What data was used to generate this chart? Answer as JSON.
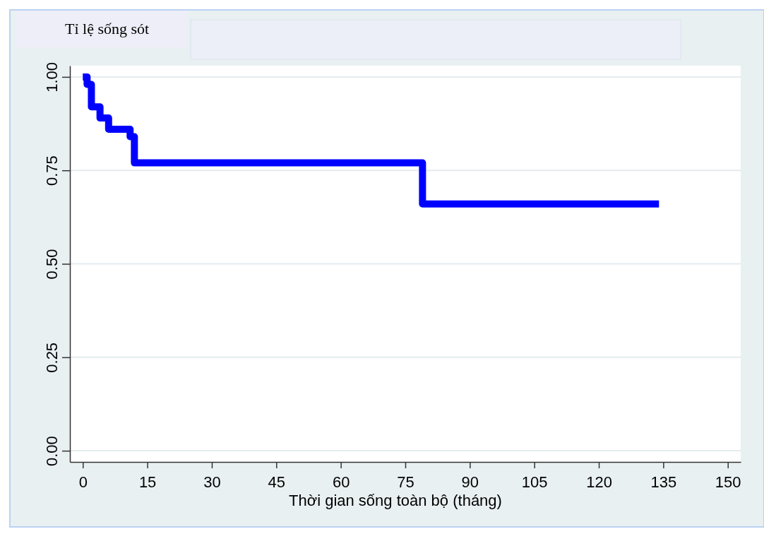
{
  "chart_data": {
    "type": "step",
    "ylabel": "Tỉ lệ sống sót",
    "xlabel": "Thời gian sống toàn bộ (tháng)",
    "x": [
      0,
      1,
      2,
      4,
      6,
      11,
      12,
      79,
      134
    ],
    "values": [
      1.0,
      0.98,
      0.92,
      0.89,
      0.86,
      0.84,
      0.77,
      0.66,
      0.66
    ],
    "color": "#0000ff",
    "xlim": [
      -3,
      153
    ],
    "xticks": [
      0,
      15,
      30,
      45,
      60,
      75,
      90,
      105,
      120,
      135,
      150
    ],
    "ylim": [
      -0.03,
      1.03
    ],
    "yticks": [
      {
        "value": 0,
        "label": "0.00"
      },
      {
        "value": 0.25,
        "label": "0.25"
      },
      {
        "value": 0.5,
        "label": "0.50"
      },
      {
        "value": 0.75,
        "label": "0.75"
      },
      {
        "value": 1,
        "label": "1.00"
      }
    ],
    "grid": "y"
  }
}
